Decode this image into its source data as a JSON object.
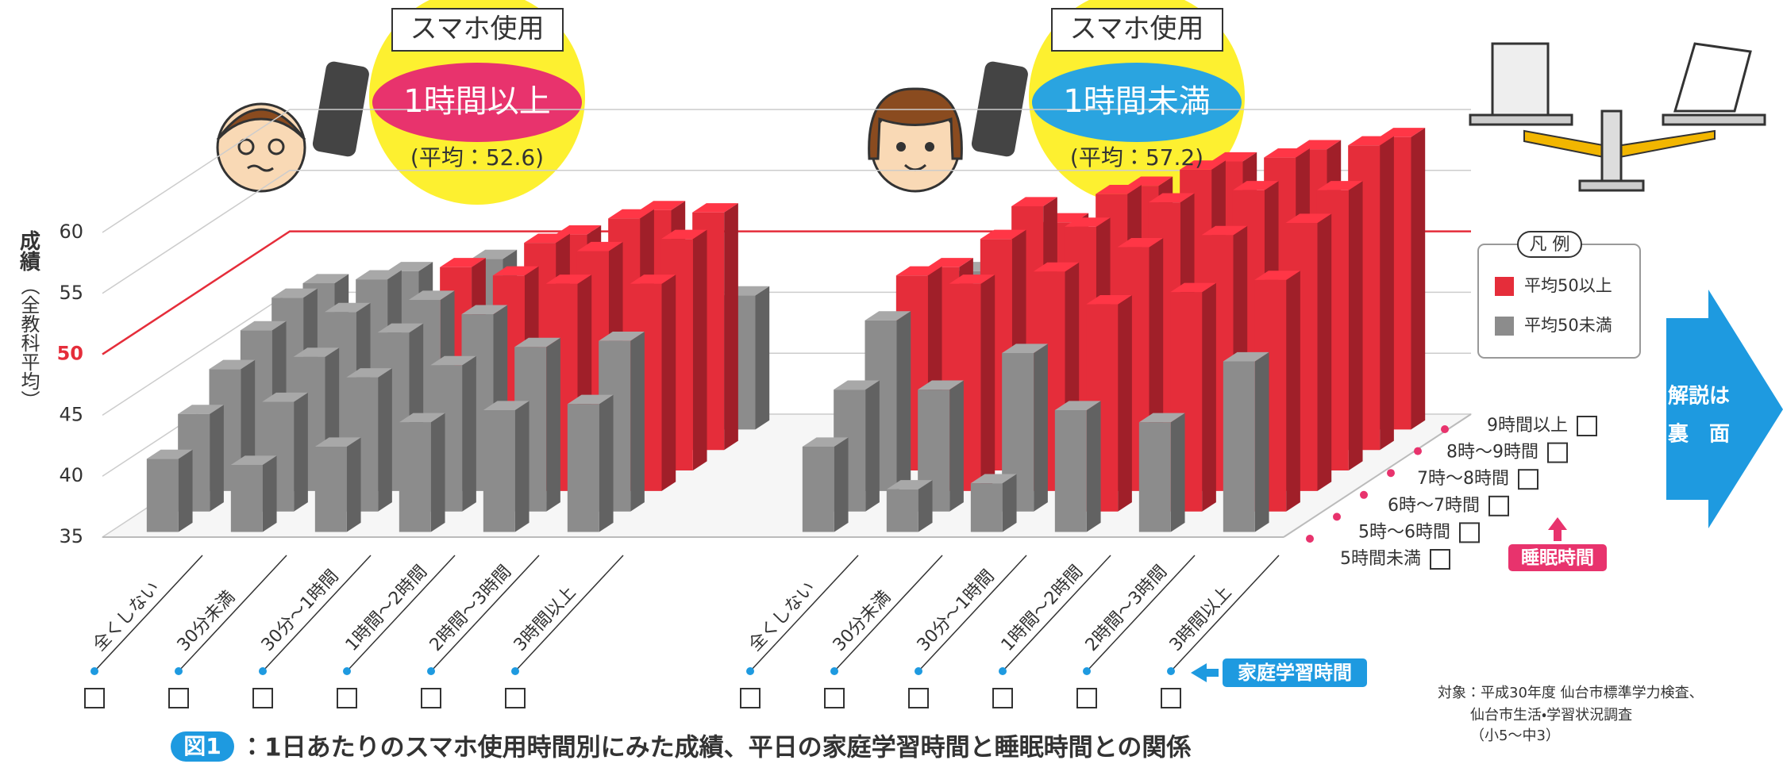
{
  "chart_data": {
    "type": "bar3d",
    "y_label": "成績",
    "y_label_sub": "（全教科平均）",
    "ylim": [
      35,
      60
    ],
    "yticks": [
      35,
      40,
      45,
      50,
      55,
      60
    ],
    "reference_line": 50,
    "x_title": "家庭学習時間",
    "depth_title": "睡眠時間",
    "categories": [
      "全くしない",
      "30分未満",
      "30分～1時間",
      "1時間～2時間",
      "2時間～3時間",
      "3時間以上"
    ],
    "depth_categories": [
      "5時間未満",
      "5時～6時間",
      "6時～7時間",
      "7時～8時間",
      "8時～9時間",
      "9時間以上"
    ],
    "groups": [
      {
        "title": "スマホ使用",
        "name": "1時間以上",
        "note": "(平均：52.6)",
        "color": "#e8336d",
        "values": [
          [
            41,
            43,
            45,
            46.5,
            47.5,
            47
          ],
          [
            40.5,
            44,
            46,
            48,
            49,
            48
          ],
          [
            42,
            46,
            48,
            49,
            50,
            49
          ],
          [
            44,
            47,
            49.5,
            51,
            52,
            51
          ],
          [
            45,
            48.5,
            52,
            53,
            54,
            53
          ],
          [
            45.5,
            49,
            52,
            54,
            54.5,
            46
          ]
        ]
      },
      {
        "title": "スマホ使用",
        "name": "1時間未満",
        "note": "(平均：57.2)",
        "color": "#2aa4e0",
        "values": [
          [
            42,
            45,
            49,
            51,
            50,
            48
          ],
          [
            38.5,
            45,
            52,
            54,
            55,
            52
          ],
          [
            39,
            48,
            53,
            55,
            56,
            55
          ],
          [
            45,
            52,
            55,
            57,
            58,
            57
          ],
          [
            44,
            53,
            56,
            58,
            59,
            58
          ],
          [
            49,
            54,
            57,
            58,
            60,
            59
          ]
        ]
      }
    ],
    "legend": {
      "title": "凡 例",
      "items": [
        {
          "label": "平均50以上",
          "color": "#e52d3a"
        },
        {
          "label": "平均50未満",
          "color": "#8c8c8c"
        }
      ]
    }
  },
  "caption": {
    "figure": "図1",
    "text": "：1日あたりのスマホ使用時間別にみた成績、平日の家庭学習時間と睡眠時間との関係"
  },
  "source": [
    "対象：平成30年度 仙台市標準学力検査、",
    "仙台市生活・学習状況調査",
    "（小5～中3）"
  ],
  "side_button": [
    "解説は",
    "裏　面"
  ]
}
